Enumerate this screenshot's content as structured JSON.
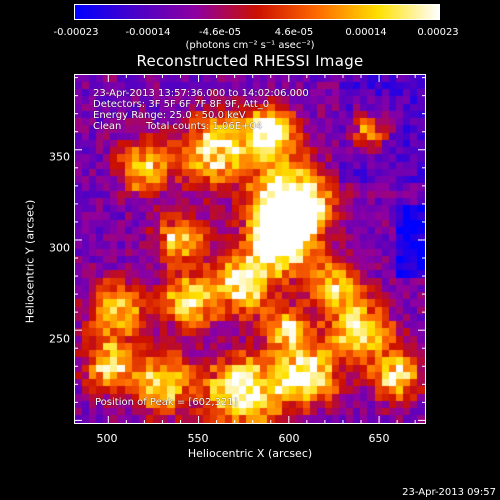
{
  "colorbar": {
    "ticks": [
      "-0.00023",
      "-0.00014",
      "-4.6e-05",
      "4.6e-05",
      "0.00014",
      "0.00023"
    ],
    "units": "(photons cm⁻² s⁻¹ asec⁻²)",
    "colors": [
      "#0000ff",
      "#4b00c8",
      "#8f00a0",
      "#cc1000",
      "#ff6a00",
      "#ffe000",
      "#ffffff"
    ]
  },
  "chart_data": {
    "type": "heatmap",
    "title": "Reconstructed RHESSI Image",
    "xlabel": "Heliocentric X (arcsec)",
    "ylabel": "Heliocentric Y (arcsec)",
    "xlim": [
      481,
      676
    ],
    "ylim": [
      198,
      392
    ],
    "xticks": [
      500,
      550,
      600,
      650
    ],
    "yticks": [
      250,
      300,
      350
    ],
    "value_range": [
      -0.00023,
      0.00023
    ],
    "peak": [
      602,
      321
    ],
    "annotations": {
      "time": "23-Apr-2013 13:57:36.000 to 14:02:06.000",
      "detectors": "Detectors: 3F 5F 6F 7F 8F 9F, Att_0",
      "energy": "Energy Range: 25.0 - 50.0 keV",
      "method": "Clean",
      "counts": "Total counts: 1.06E+04",
      "peak_label": "Position of Peak = [602,321]"
    }
  },
  "footer": {
    "timestamp": "23-Apr-2013 09:57"
  }
}
